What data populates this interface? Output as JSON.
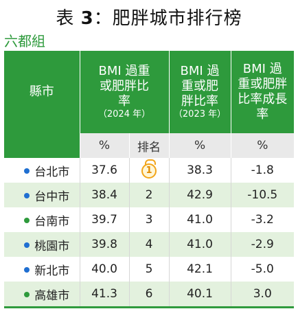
{
  "title": {
    "prefix": "表 ",
    "number": "3",
    "suffix": "：肥胖城市排行榜"
  },
  "subtitle": "六都組",
  "table": {
    "headers": {
      "county": "縣市",
      "bmi2024_main": "BMI 過重或肥胖比率",
      "bmi2024_year": "（2024 年）",
      "bmi2023_main": "BMI 過重或肥胖比率",
      "bmi2023_year": "（2023 年）",
      "growth": "BMI 過重或肥胖比率成長率"
    },
    "units": {
      "bmi2024": "%",
      "rank": "排名",
      "bmi2023": "%",
      "growth": "%"
    },
    "rows": [
      {
        "city": "台北市",
        "bmi2024": "37.6",
        "rank": "1",
        "bmi2023": "38.3",
        "growth": "-1.8",
        "dot_color": "#1f6fd1"
      },
      {
        "city": "台中市",
        "bmi2024": "38.4",
        "rank": "2",
        "bmi2023": "42.9",
        "growth": "-10.5",
        "dot_color": "#1f6fd1"
      },
      {
        "city": "台南市",
        "bmi2024": "39.7",
        "rank": "3",
        "bmi2023": "41.0",
        "growth": "-3.2",
        "dot_color": "#2e9a3c"
      },
      {
        "city": "桃園市",
        "bmi2024": "39.8",
        "rank": "4",
        "bmi2023": "41.0",
        "growth": "-2.9",
        "dot_color": "#1f6fd1"
      },
      {
        "city": "新北市",
        "bmi2024": "40.0",
        "rank": "5",
        "bmi2023": "42.1",
        "growth": "-5.0",
        "dot_color": "#1f6fd1"
      },
      {
        "city": "高雄市",
        "bmi2024": "41.3",
        "rank": "6",
        "bmi2023": "40.1",
        "growth": "3.0",
        "dot_color": "#2e9a3c"
      }
    ]
  },
  "colors": {
    "header_green": "#2e9a3c",
    "row_alt": "#e3f1de",
    "medal_gold": "#f2a51a"
  }
}
